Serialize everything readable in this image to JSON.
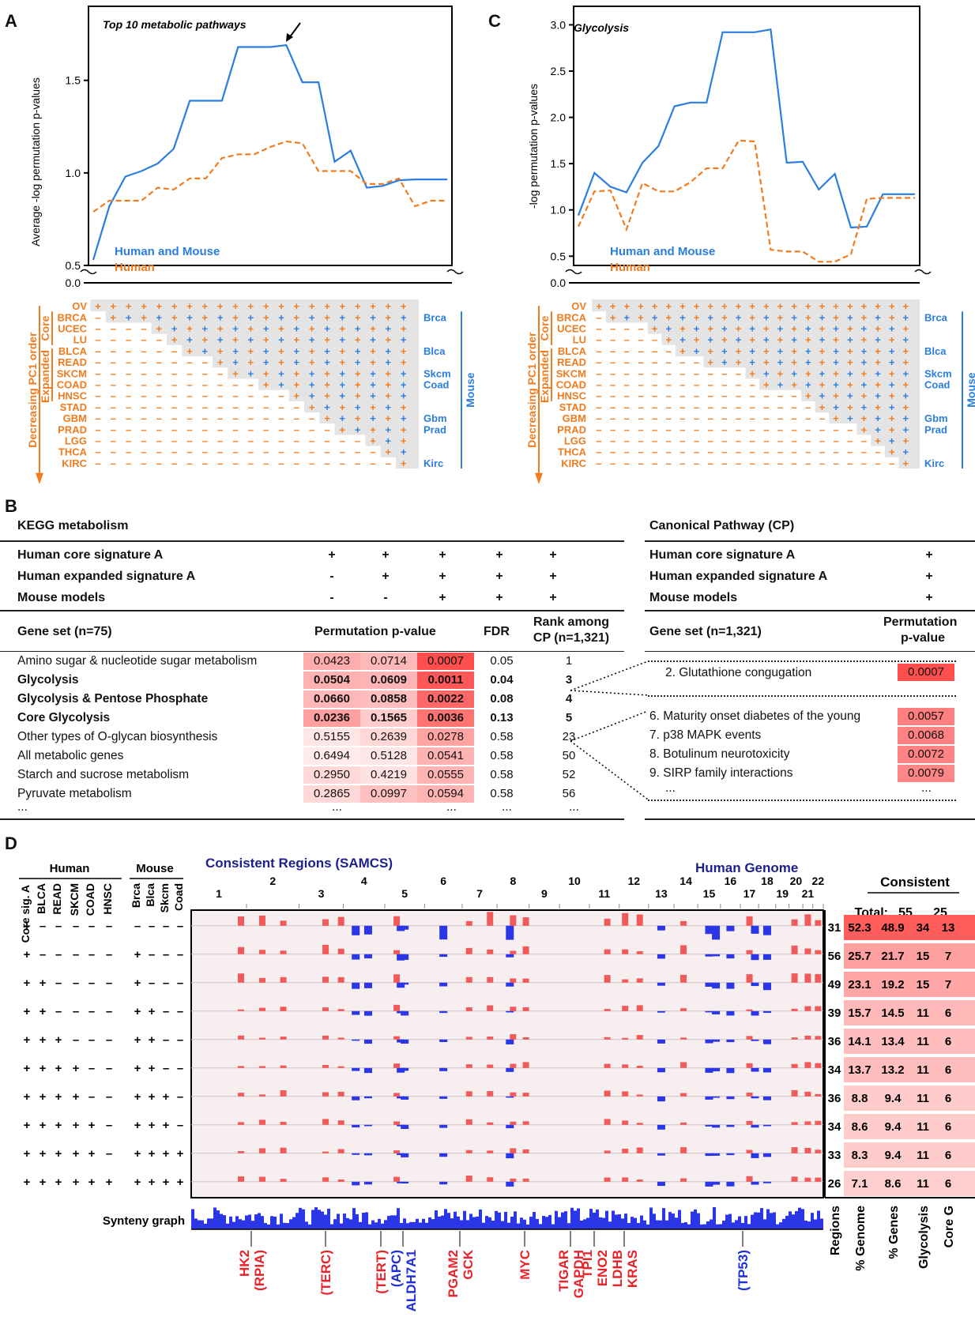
{
  "panels": {
    "a": "A",
    "b": "B",
    "c": "C",
    "d": "D"
  },
  "chart_data": [
    {
      "type": "line",
      "title": "Top 10 metabolic pathways",
      "ylabel": "Average -log permutation p-values",
      "yticks": [
        "0.0",
        "0.5",
        "1.0",
        "1.5"
      ],
      "ylim": [
        0.5,
        1.9
      ],
      "series": [
        {
          "name": "Human and Mouse",
          "color": "#2b7ee0",
          "values": [
            0.53,
            0.82,
            0.98,
            1.01,
            1.05,
            1.13,
            1.39,
            1.39,
            1.39,
            1.68,
            1.68,
            1.68,
            1.69,
            1.49,
            1.49,
            1.06,
            1.12,
            0.92,
            0.93,
            0.96,
            0.965,
            0.965,
            0.965
          ]
        },
        {
          "name": "Human",
          "color": "#f07c1f",
          "values": [
            0.79,
            0.85,
            0.85,
            0.85,
            0.92,
            0.91,
            0.97,
            0.97,
            1.08,
            1.1,
            1.1,
            1.14,
            1.17,
            1.16,
            1.01,
            1.01,
            1.01,
            0.94,
            0.94,
            0.97,
            0.82,
            0.85,
            0.85
          ]
        }
      ]
    },
    {
      "type": "line",
      "title": "Glycolysis",
      "ylabel": "-log permutation p-values",
      "yticks": [
        "0.0",
        "0.5",
        "1.0",
        "1.5",
        "2.0",
        "2.5",
        "3.0"
      ],
      "ylim": [
        0.4,
        3.2
      ],
      "series": [
        {
          "name": "Human and Mouse",
          "color": "#2b7ee0",
          "values": [
            0.94,
            1.4,
            1.25,
            1.19,
            1.51,
            1.69,
            2.12,
            2.16,
            2.16,
            2.92,
            2.92,
            2.92,
            2.95,
            1.51,
            1.52,
            1.22,
            1.39,
            0.81,
            0.82,
            1.17,
            1.17,
            1.17
          ]
        },
        {
          "name": "Human",
          "color": "#f07c1f",
          "values": [
            0.82,
            1.2,
            1.21,
            0.79,
            1.29,
            1.2,
            1.2,
            1.3,
            1.45,
            1.45,
            1.75,
            1.74,
            0.57,
            0.55,
            0.55,
            0.44,
            0.44,
            0.52,
            1.12,
            1.13,
            1.13,
            1.13
          ]
        }
      ]
    }
  ],
  "grid": {
    "side_core": "Core",
    "side_expanded": "Expanded",
    "side_order": "Decreasing PC1 order",
    "mouse_label": "Mouse",
    "human_rows": [
      "OV",
      "BRCA",
      "UCEC",
      "LU",
      "BLCA",
      "READ",
      "SKCM",
      "COAD",
      "HNSC",
      "STAD",
      "GBM",
      "PRAD",
      "LGG",
      "THCA",
      "KIRC"
    ],
    "mouse_rows": {
      "1": "Brca",
      "4": "Blca",
      "6": "Skcm",
      "7": "Coad",
      "10": "Gbm",
      "11": "Prad",
      "14": "Kirc"
    },
    "row_start_a": [
      0,
      1,
      4,
      5,
      6,
      8,
      9,
      11,
      13,
      14,
      15,
      16,
      18,
      19,
      20
    ],
    "row_start_c": [
      0,
      1,
      4,
      5,
      6,
      8,
      11,
      12,
      15,
      16,
      17,
      19,
      20,
      21,
      22
    ]
  },
  "kegg": {
    "title": "KEGG metabolism",
    "sig_rows": [
      {
        "label": "Human core signature A",
        "vals": [
          "+",
          "+",
          "+",
          "+",
          "+"
        ]
      },
      {
        "label": "Human expanded signature A",
        "vals": [
          "-",
          "+",
          "+",
          "+",
          "+"
        ]
      },
      {
        "label": "Mouse models",
        "vals": [
          "-",
          "-",
          "+",
          "+",
          "+"
        ]
      }
    ],
    "gene_set_header": "Gene set (n=75)",
    "perm_header": "Permutation p-value",
    "fdr_header": "FDR",
    "rank_header_1": "Rank among",
    "rank_header_2": "CP (n=1,321)",
    "rows": [
      {
        "name": "Amino sugar & nucleotide sugar metabolism",
        "bold": false,
        "p": [
          "0.0423",
          "0.0714",
          "0.0007"
        ],
        "fdr": "0.05",
        "rank": "1"
      },
      {
        "name": "Glycolysis",
        "bold": true,
        "p": [
          "0.0504",
          "0.0609",
          "0.0011"
        ],
        "fdr": "0.04",
        "rank": "3"
      },
      {
        "name": "Glycolysis & Pentose Phosphate",
        "bold": true,
        "p": [
          "0.0660",
          "0.0858",
          "0.0022"
        ],
        "fdr": "0.08",
        "rank": "4"
      },
      {
        "name": "Core Glycolysis",
        "bold": true,
        "p": [
          "0.0236",
          "0.1565",
          "0.0036"
        ],
        "fdr": "0.13",
        "rank": "5"
      },
      {
        "name": "Other types of O-glycan biosynthesis",
        "bold": false,
        "p": [
          "0.5155",
          "0.2639",
          "0.0278"
        ],
        "fdr": "0.58",
        "rank": "23"
      },
      {
        "name": "All metabolic genes",
        "bold": false,
        "p": [
          "0.6494",
          "0.5128",
          "0.0541"
        ],
        "fdr": "0.58",
        "rank": "50"
      },
      {
        "name": "Starch and sucrose metabolism",
        "bold": false,
        "p": [
          "0.2950",
          "0.4219",
          "0.0555"
        ],
        "fdr": "0.58",
        "rank": "52"
      },
      {
        "name": "Pyruvate metabolism",
        "bold": false,
        "p": [
          "0.2865",
          "0.0997",
          "0.0594"
        ],
        "fdr": "0.58",
        "rank": "56"
      }
    ],
    "ellipsis": "..."
  },
  "cp": {
    "title": "Canonical Pathway (CP)",
    "sig_rows": [
      {
        "label": "Human core signature A",
        "val": "+"
      },
      {
        "label": "Human expanded signature A",
        "val": "+"
      },
      {
        "label": "Mouse models",
        "val": "+"
      }
    ],
    "gene_set_header": "Gene set (n=1,321)",
    "perm_header_1": "Permutation",
    "perm_header_2": "p-value",
    "rows_top": [
      {
        "name": "2. Glutathione congugation",
        "p": "0.0007"
      }
    ],
    "rows": [
      {
        "name": "6. Maturity onset diabetes of the young",
        "p": "0.0057"
      },
      {
        "name": "7. p38 MAPK events",
        "p": "0.0068"
      },
      {
        "name": "8. Botulinum neurotoxicity",
        "p": "0.0072"
      },
      {
        "name": "9. SIRP family interactions",
        "p": "0.0079"
      }
    ],
    "ellipsis": "..."
  },
  "genome": {
    "human_header": "Human",
    "mouse_header": "Mouse",
    "human_cols": [
      "Core sig. A",
      "BLCA",
      "READ",
      "SKCM",
      "COAD",
      "HNSC"
    ],
    "mouse_cols": [
      "Brca",
      "Blca",
      "Skcm",
      "Coad"
    ],
    "consistent_title": "Consistent Regions (SAMCS)",
    "human_genome_title": "Human Genome",
    "chromosomes": [
      "1",
      "2",
      "3",
      "4",
      "5",
      "6",
      "7",
      "8",
      "9",
      "10",
      "11",
      "12",
      "13",
      "14",
      "15",
      "16",
      "17",
      "18",
      "19",
      "20",
      "21",
      "22"
    ],
    "signature_rows": [
      [
        "+",
        "–",
        "–",
        "–",
        "–",
        "–",
        "–",
        "–",
        "–",
        "–"
      ],
      [
        "+",
        "–",
        "–",
        "–",
        "–",
        "–",
        "+",
        "–",
        "–",
        "–"
      ],
      [
        "+",
        "+",
        "–",
        "–",
        "–",
        "–",
        "+",
        "–",
        "–",
        "–"
      ],
      [
        "+",
        "+",
        "–",
        "–",
        "–",
        "–",
        "+",
        "+",
        "–",
        "–"
      ],
      [
        "+",
        "+",
        "+",
        "–",
        "–",
        "–",
        "+",
        "+",
        "–",
        "–"
      ],
      [
        "+",
        "+",
        "+",
        "+",
        "–",
        "–",
        "+",
        "+",
        "–",
        "–"
      ],
      [
        "+",
        "+",
        "+",
        "+",
        "–",
        "–",
        "+",
        "+",
        "+",
        "–"
      ],
      [
        "+",
        "+",
        "+",
        "+",
        "+",
        "–",
        "+",
        "+",
        "+",
        "–"
      ],
      [
        "+",
        "+",
        "+",
        "+",
        "+",
        "–",
        "+",
        "+",
        "+",
        "+"
      ],
      [
        "+",
        "+",
        "+",
        "+",
        "+",
        "+",
        "+",
        "+",
        "+",
        "+"
      ]
    ],
    "synteny_label": "Synteny graph",
    "consistent_header": "Consistent",
    "total_label": "Total:",
    "total_glycolysis": "55",
    "total_core": "25",
    "stats": [
      {
        "regions": "31",
        "genome": "52.3",
        "genes": "48.9",
        "glyco": "34",
        "core": "13"
      },
      {
        "regions": "56",
        "genome": "25.7",
        "genes": "21.7",
        "glyco": "15",
        "core": "7"
      },
      {
        "regions": "49",
        "genome": "23.1",
        "genes": "19.2",
        "glyco": "15",
        "core": "7"
      },
      {
        "regions": "39",
        "genome": "15.7",
        "genes": "14.5",
        "glyco": "11",
        "core": "6"
      },
      {
        "regions": "36",
        "genome": "14.1",
        "genes": "13.4",
        "glyco": "11",
        "core": "6"
      },
      {
        "regions": "34",
        "genome": "13.7",
        "genes": "13.2",
        "glyco": "11",
        "core": "6"
      },
      {
        "regions": "36",
        "genome": "8.8",
        "genes": "9.4",
        "glyco": "11",
        "core": "6"
      },
      {
        "regions": "34",
        "genome": "8.6",
        "genes": "9.4",
        "glyco": "11",
        "core": "6"
      },
      {
        "regions": "33",
        "genome": "8.3",
        "genes": "9.4",
        "glyco": "11",
        "core": "6"
      },
      {
        "regions": "26",
        "genome": "7.1",
        "genes": "8.6",
        "glyco": "11",
        "core": "6"
      }
    ],
    "stat_cols": [
      "Regions",
      "% Genome",
      "% Genes",
      "Glycolysis",
      "Core G"
    ],
    "genes": [
      {
        "l1": "HK2",
        "l2": "(RPIA)",
        "color": "#e8232a"
      },
      {
        "l1": "",
        "l2": "(TERC)",
        "color": "#e8232a"
      },
      {
        "l1": "",
        "l2": "(TERT)",
        "color": "#e8232a"
      },
      {
        "l1": "(APC)",
        "l2": "ALDH7A1",
        "color": "#1f2fd9"
      },
      {
        "l1": "PGAM2",
        "l2": "GCK",
        "color": "#e8232a"
      },
      {
        "l1": "",
        "l2": "MYC",
        "color": "#e8232a"
      },
      {
        "l1": "TIGAR",
        "l2": "GAPDH",
        "color": "#e8232a"
      },
      {
        "l1": "TPI1",
        "l2": "ENO2",
        "color": "#e8232a"
      },
      {
        "l1": "LDHB",
        "l2": "KRAS",
        "color": "#e8232a"
      },
      {
        "l1": "",
        "l2": "(TP53)",
        "color": "#1f2fd9"
      }
    ]
  },
  "colors": {
    "blue": "#2b7ee0",
    "orange": "#f07c1f",
    "navy": "#1c1f8c",
    "red": "#e8232a"
  }
}
